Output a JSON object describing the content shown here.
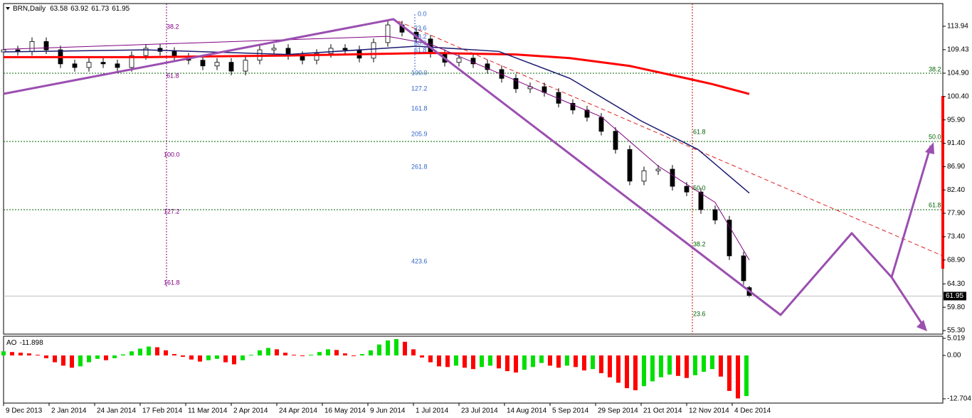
{
  "chart_data": [
    {
      "type": "candlestick",
      "title": "BRN,Daily",
      "x": [
        0,
        5,
        10,
        15,
        20,
        25,
        30,
        35,
        40,
        45,
        50,
        55,
        60,
        65,
        70,
        75,
        80,
        85,
        90,
        95,
        100,
        105,
        110,
        115,
        120,
        125,
        130,
        135,
        140,
        145,
        150,
        155,
        160,
        165,
        170,
        175,
        180,
        185,
        190,
        195,
        200,
        205,
        210,
        215,
        220,
        225,
        230,
        235,
        240,
        245,
        250,
        255,
        260,
        262
      ],
      "open": [
        109.0,
        109.4,
        109.1,
        111,
        109.4,
        106.7,
        106,
        107,
        106.7,
        106,
        108.3,
        109.7,
        109.1,
        108,
        107.4,
        106.3,
        107,
        105.3,
        107.4,
        109.4,
        109.7,
        108.3,
        107.4,
        108.7,
        109.7,
        109.4,
        107.8,
        110.8,
        114.2,
        112.8,
        111.5,
        108.7,
        107,
        107.8,
        106.7,
        105.6,
        103.9,
        101.9,
        102.3,
        101.2,
        99.1,
        97.8,
        96.4,
        93.7,
        90.2,
        84.1,
        86.1,
        86.4,
        83.1,
        82,
        78.6,
        76.6,
        69.7,
        63.58
      ],
      "high": [
        110.2,
        110.2,
        111.8,
        111.8,
        110.2,
        107.5,
        107.8,
        107.8,
        107.5,
        109.1,
        110.5,
        110.5,
        109.9,
        108.8,
        108.2,
        107.8,
        107.8,
        108.2,
        110.2,
        110.5,
        110.5,
        109.1,
        109.5,
        110.5,
        110.5,
        110.2,
        111.6,
        115,
        115,
        113.6,
        112.3,
        109.5,
        108.6,
        108.6,
        107.5,
        106.4,
        104.7,
        103.1,
        103.1,
        102,
        99.9,
        98.6,
        97.2,
        94.5,
        91,
        86.9,
        87.2,
        87.2,
        83.9,
        82.8,
        79.4,
        77.4,
        70.5,
        63.92
      ],
      "low": [
        108.2,
        108.3,
        108.3,
        108.6,
        105.9,
        105.2,
        105.2,
        105.9,
        105.2,
        105.2,
        107.5,
        108.3,
        107.2,
        106.6,
        105.5,
        105.5,
        104.5,
        104.5,
        106.6,
        108.6,
        107.5,
        106.6,
        106.6,
        107.9,
        108.6,
        107,
        107,
        110,
        112,
        110.7,
        107.9,
        106.2,
        106.2,
        105.9,
        104.8,
        103.1,
        101.1,
        101.1,
        100.4,
        98.3,
        97,
        95.6,
        92.9,
        89.4,
        83.3,
        83.3,
        85.3,
        82.3,
        81.2,
        77.8,
        75.8,
        68.9,
        64.1,
        61.73
      ],
      "close": [
        109.4,
        109.1,
        111,
        109.4,
        106.7,
        106,
        107,
        106.7,
        106,
        108.3,
        109.7,
        109.1,
        108,
        107.4,
        106.3,
        107,
        105.3,
        107.4,
        109.4,
        109.7,
        108.3,
        107.4,
        108.7,
        109.7,
        109.4,
        107.8,
        110.8,
        114.2,
        112.8,
        111.5,
        108.7,
        107,
        107.8,
        106.7,
        105.6,
        103.9,
        101.9,
        102.3,
        101.2,
        99.1,
        97.8,
        96.4,
        93.7,
        90.2,
        84.1,
        86.1,
        86.4,
        83.1,
        82,
        78.6,
        76.6,
        69.7,
        64.9,
        61.95
      ],
      "up_color": "#ffffff",
      "down_color": "#000000",
      "lines": [
        {
          "color": "#ff0000",
          "x": [
            0,
            50,
            100,
            150,
            180,
            199,
            220,
            240,
            249,
            262
          ],
          "values": [
            108.0,
            108.0,
            108.3,
            108.8,
            108.5,
            107.8,
            106.3,
            103.9,
            102.8,
            100.9
          ]
        },
        {
          "color": "#191970",
          "x": [
            0,
            50,
            100,
            145,
            174,
            199,
            224,
            244,
            262
          ],
          "values": [
            109,
            109.4,
            108.5,
            110.1,
            109.1,
            103.9,
            95.7,
            90.2,
            81.8
          ]
        },
        {
          "color": "#800080",
          "x": [
            0,
            135,
            150,
            180,
            210,
            230,
            250,
            262
          ],
          "values": [
            109.5,
            112,
            110.5,
            103.5,
            96.5,
            87,
            80,
            68.9
          ]
        }
      ],
      "xlim": [
        0,
        330
      ],
      "xticks": [
        {
          "value": 0,
          "label": "9 Dec 2013"
        },
        {
          "value": 16,
          "label": "2 Jan 2014"
        },
        {
          "value": 32,
          "label": "24 Jan 2014"
        },
        {
          "value": 48,
          "label": "17 Feb 2014"
        },
        {
          "value": 64,
          "label": "11 Mar 2014"
        },
        {
          "value": 80,
          "label": "2 Apr 2014"
        },
        {
          "value": 96,
          "label": "24 Apr 2014"
        },
        {
          "value": 112,
          "label": "16 May 2014"
        },
        {
          "value": 128,
          "label": "9 Jun 2014"
        },
        {
          "value": 144,
          "label": "1 Jul 2014"
        },
        {
          "value": 160,
          "label": "23 Jul 2014"
        },
        {
          "value": 176,
          "label": "14 Aug 2014"
        },
        {
          "value": 192,
          "label": "5 Sep 2014"
        },
        {
          "value": 208,
          "label": "29 Sep 2014"
        },
        {
          "value": 224,
          "label": "21 Oct 2014"
        },
        {
          "value": 240,
          "label": "12 Nov 2014"
        },
        {
          "value": 256,
          "label": "4 Dec 2014"
        }
      ],
      "ylim": [
        54.62,
        118.32
      ],
      "yticks": [
        113.94,
        109.43,
        {
          "value": 104.9,
          "label": "104.90"
        },
        {
          "value": 100.4,
          "label": "100.40"
        },
        {
          "value": 95.9,
          "label": "95.90"
        },
        {
          "value": 91.4,
          "label": "91.40"
        },
        {
          "value": 86.9,
          "label": "86.90"
        },
        {
          "value": 82.4,
          "label": "82.40"
        },
        {
          "value": 77.9,
          "label": "77.90"
        },
        {
          "value": 73.4,
          "label": "73.40"
        },
        {
          "value": 68.9,
          "label": "68.90"
        },
        {
          "value": 64.3,
          "label": "64.30"
        },
        {
          "value": 59.8,
          "label": "59.80"
        },
        {
          "value": 55.3,
          "label": "55.30"
        }
      ],
      "grid": false,
      "annotations": {
        "fib_blue": [
          "0.0",
          "23.6",
          "38.2",
          "50.0",
          "61.8",
          "100.0",
          "127.2",
          "161.8",
          "205.9",
          "261.8",
          "423.6"
        ],
        "fib_purple": [
          "38.2",
          "61.8",
          "100.0",
          "127.2",
          "161.8"
        ],
        "fib_green_right": [
          "38.2",
          "50.0",
          "61.8"
        ],
        "fib_green_mid": [
          "61.8",
          "50.0",
          "38.2",
          "23.6"
        ]
      }
    },
    {
      "type": "bar",
      "title": "AO",
      "x": [
        0,
        3,
        6,
        9,
        12,
        15,
        18,
        21,
        24,
        27,
        30,
        33,
        36,
        39,
        42,
        45,
        48,
        51,
        54,
        57,
        60,
        63,
        66,
        69,
        72,
        75,
        78,
        81,
        84,
        87,
        90,
        93,
        96,
        99,
        102,
        105,
        108,
        111,
        114,
        117,
        120,
        123,
        126,
        129,
        132,
        135,
        138,
        141,
        144,
        147,
        150,
        153,
        156,
        159,
        162,
        165,
        168,
        171,
        174,
        177,
        180,
        183,
        186,
        189,
        192,
        195,
        198,
        201,
        204,
        207,
        210,
        213,
        216,
        219,
        222,
        225,
        228,
        231,
        234,
        237,
        240,
        243,
        246,
        249,
        252,
        255,
        258,
        261
      ],
      "values": [
        1.2,
        1.0,
        0.8,
        0.6,
        0.2,
        -0.8,
        -2.0,
        -3.0,
        -3.6,
        -3.2,
        -2.0,
        -1.0,
        -1.4,
        -0.8,
        0.3,
        1.2,
        2.0,
        2.6,
        2.4,
        1.5,
        0.4,
        -0.4,
        -1.2,
        -1.8,
        -1.4,
        -1.0,
        -2.0,
        -2.6,
        -1.4,
        0.2,
        1.5,
        2.2,
        1.8,
        0.8,
        0.2,
        -0.2,
        0.2,
        1.0,
        1.8,
        1.6,
        0.6,
        -0.2,
        0.4,
        1.5,
        3.2,
        4.4,
        4.8,
        4.0,
        1.8,
        -0.6,
        -2.0,
        -3.2,
        -3.4,
        -3.0,
        -3.6,
        -4.0,
        -3.4,
        -3.0,
        -3.8,
        -4.6,
        -5.0,
        -4.2,
        -3.4,
        -2.2,
        -3.0,
        -3.6,
        -3.0,
        -3.4,
        -4.4,
        -4.0,
        -5.2,
        -6.4,
        -8.0,
        -9.6,
        -10.2,
        -9.0,
        -7.6,
        -6.4,
        -5.6,
        -6.0,
        -6.6,
        -5.8,
        -4.8,
        -4.0,
        -6.2,
        -10.4,
        -12.6,
        -11.898
      ],
      "up_color": "#00e000",
      "down_color": "#ff0000",
      "xlim": [
        0,
        330
      ],
      "ylim": [
        -13.96,
        5.625
      ],
      "yticks": [
        5.019,
        {
          "value": 0,
          "label": "0.00"
        },
        -12.704
      ]
    }
  ]
}
